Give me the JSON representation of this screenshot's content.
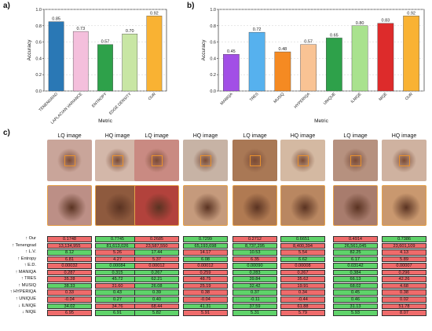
{
  "panels": {
    "a": "a)",
    "b": "b)",
    "c": "c)"
  },
  "charts": [
    {
      "type": "bar",
      "categories": [
        "TENENGRAD",
        "LAPLACIAN VARIANCE",
        "ENTROPY",
        "EDGE DENSITY",
        "OUR"
      ],
      "values": [
        0.85,
        0.73,
        0.57,
        0.7,
        0.92
      ],
      "value_labels": [
        "0.85",
        "0.73",
        "0.57",
        "0.70",
        "0.92"
      ],
      "colors": [
        "#2a78b5",
        "#f4bfdc",
        "#2ea14a",
        "#c8e6a4",
        "#f9b233"
      ],
      "xlabel": "Metric",
      "ylabel": "Accuracy",
      "ylim": [
        0.0,
        1.0
      ],
      "yticks": [
        "0.0",
        "0.2",
        "0.4",
        "0.6",
        "0.8",
        "1.0"
      ],
      "grid": true
    },
    {
      "type": "bar",
      "categories": [
        "MANIQA",
        "TRES",
        "MUSIQ",
        "HYPERIQA",
        "UNIQUE",
        "ILNIQE",
        "NIQE",
        "OUR"
      ],
      "values": [
        0.45,
        0.72,
        0.48,
        0.57,
        0.65,
        0.8,
        0.83,
        0.92
      ],
      "value_labels": [
        "0.45",
        "0.72",
        "0.48",
        "0.57",
        "0.65",
        "0.80",
        "0.83",
        "0.92"
      ],
      "colors": [
        "#a24fe6",
        "#56b1ee",
        "#f58a22",
        "#f9c394",
        "#2ea14a",
        "#a9e28e",
        "#dd2b2b",
        "#f9b233"
      ],
      "xlabel": "Metric",
      "ylabel": "Accuracy",
      "ylim": [
        0.0,
        1.0
      ],
      "yticks": [
        "0.0",
        "0.2",
        "0.4",
        "0.6",
        "0.8",
        "1.0"
      ],
      "grid": true
    }
  ],
  "chart_data": [
    {
      "type": "bar",
      "categories": [
        "TENENGRAD",
        "LAPLACIAN VARIANCE",
        "ENTROPY",
        "EDGE DENSITY",
        "OUR"
      ],
      "values": [
        0.85,
        0.73,
        0.57,
        0.7,
        0.92
      ],
      "xlabel": "Metric",
      "ylabel": "Accuracy",
      "ylim": [
        0.0,
        1.0
      ]
    },
    {
      "type": "bar",
      "categories": [
        "MANIQA",
        "TRES",
        "MUSIQ",
        "HYPERIQA",
        "UNIQUE",
        "ILNIQE",
        "NIQE",
        "OUR"
      ],
      "values": [
        0.45,
        0.72,
        0.48,
        0.57,
        0.65,
        0.8,
        0.83,
        0.92
      ],
      "xlabel": "Metric",
      "ylabel": "Accuracy",
      "ylim": [
        0.0,
        1.0
      ]
    },
    {
      "type": "table",
      "columns": [
        "LQ image",
        "HQ image",
        "LQ image",
        "HQ image",
        "LQ image",
        "HQ image",
        "LQ image",
        "HQ image"
      ],
      "rows": [
        {
          "metric": "↑ Our",
          "values": [
            "0.1748",
            "0.7745",
            "0.2685",
            "0.7299",
            "0.2712",
            "0.6651",
            "0.4914",
            "0.7386"
          ],
          "status": [
            "r",
            "g",
            "r",
            "g",
            "r",
            "g",
            "r",
            "g"
          ]
        },
        {
          "metric": "↑ Tenengrad",
          "values": [
            "13,134,955",
            "81,613,026",
            "23,587,550",
            "65,193,698",
            "8,737,295",
            "8,400,394",
            "26,561,045",
            "23,601,109"
          ],
          "status": [
            "r",
            "g",
            "r",
            "g",
            "g",
            "r",
            "g",
            "r"
          ]
        },
        {
          "metric": "↑ L.V.",
          "values": [
            "8.12",
            "5.26",
            "17.44",
            "14.17",
            "10.53",
            "5.54",
            "82.25",
            "4.13"
          ],
          "status": [
            "g",
            "r",
            "g",
            "r",
            "g",
            "r",
            "g",
            "r"
          ]
        },
        {
          "metric": "↑ Entropy",
          "values": [
            "6.81",
            "4.27",
            "5.37",
            "6.08",
            "6.35",
            "6.62",
            "6.17",
            "5.89"
          ],
          "status": [
            "r",
            "r",
            "r",
            "g",
            "r",
            "g",
            "g",
            "r"
          ]
        },
        {
          "metric": "↑ E.D.",
          "values": [
            "0.00032",
            "0.00084",
            "0.00012",
            "0.00012",
            "0.00090",
            "0.00008",
            "0.03142",
            "0.00007"
          ],
          "status": [
            "r",
            "g",
            "r",
            "r",
            "g",
            "r",
            "g",
            "r"
          ]
        },
        {
          "metric": "↑ MANIQA",
          "values": [
            "0.287",
            "0.315",
            "0.267",
            "0.259",
            "0.283",
            "0.267",
            "0.384",
            "0.296"
          ],
          "status": [
            "r",
            "g",
            "g",
            "r",
            "g",
            "r",
            "g",
            "r"
          ]
        },
        {
          "metric": "↑ TRES",
          "values": [
            "35.28",
            "45.72",
            "62.21",
            "48.75",
            "39.84",
            "35.62",
            "66.13",
            "42.26"
          ],
          "status": [
            "r",
            "g",
            "g",
            "r",
            "g",
            "r",
            "g",
            "r"
          ]
        },
        {
          "metric": "↑ MUSIQ",
          "values": [
            "38.33",
            "31.60",
            "26.08",
            "25.19",
            "32.42",
            "19.91",
            "68.02",
            "4.68"
          ],
          "status": [
            "g",
            "r",
            "g",
            "r",
            "g",
            "r",
            "g",
            "r"
          ]
        },
        {
          "metric": "↑ HYPERIQA",
          "values": [
            "0.33",
            "0.43",
            "0.39",
            "0.38",
            "0.37",
            "0.34",
            "0.45",
            "0.38"
          ],
          "status": [
            "r",
            "g",
            "g",
            "r",
            "g",
            "r",
            "g",
            "r"
          ]
        },
        {
          "metric": "↑ UNIQUE",
          "values": [
            "-0.04",
            "0.27",
            "0.40",
            "-0.04",
            "-0.11",
            "-0.44",
            "0.46",
            "0.02"
          ],
          "status": [
            "r",
            "g",
            "g",
            "r",
            "g",
            "r",
            "g",
            "r"
          ]
        },
        {
          "metric": "↓ ILNIQE",
          "values": [
            "34.02",
            "34.76",
            "68.44",
            "41.31",
            "37.59",
            "61.88",
            "31.13",
            "51.78"
          ],
          "status": [
            "g",
            "r",
            "r",
            "g",
            "g",
            "r",
            "g",
            "r"
          ]
        },
        {
          "metric": "↓ NIQE",
          "values": [
            "6.95",
            "6.91",
            "5.82",
            "5.91",
            "5.31",
            "5.79",
            "5.93",
            "8.07"
          ],
          "status": [
            "r",
            "g",
            "g",
            "r",
            "g",
            "r",
            "g",
            "r"
          ]
        }
      ]
    }
  ],
  "image_columns": [
    "LQ image",
    "HQ image",
    "LQ image",
    "HQ image",
    "LQ image",
    "HQ image",
    "LQ image",
    "HQ image"
  ],
  "thumb_colors": [
    [
      "#c9a59a",
      "#d3b7a9"
    ],
    [
      "#c98a82",
      "#c7b3a5"
    ],
    [
      "#a97855",
      "#d4b9a2"
    ],
    [
      "#b6917f",
      "#cfb2a0"
    ]
  ],
  "zoom_colors": [
    [
      "#bc8f86",
      "#8e5a3e"
    ],
    [
      "#b2423c",
      "#c59a7c"
    ],
    [
      "#b07a52",
      "#b98761"
    ],
    [
      "#a87c6d",
      "#c9986f"
    ]
  ]
}
